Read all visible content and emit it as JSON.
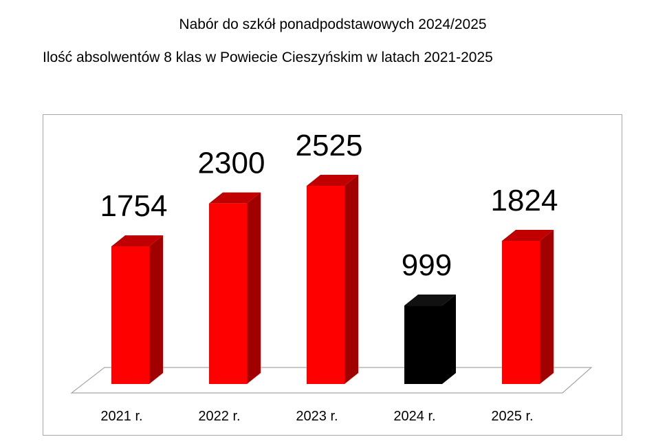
{
  "header": {
    "title": "Nabór do szkół ponadpodstawowych 2024/2025",
    "subtitle": "Ilość absolwentów 8 klas w Powiecie Cieszyńskim w latach 2021-2025"
  },
  "colors": {
    "bar_front": "#ff0000",
    "bar_top": "#c00000",
    "bar_side": "#a00000",
    "highlight_front": "#000000",
    "highlight_top": "#111111",
    "highlight_side": "#000000",
    "floor_stroke": "#a6a6a6",
    "frame_border": "#a6a6a6"
  },
  "chart_data": {
    "type": "bar",
    "style": "3d-column",
    "categories": [
      "2021 r.",
      "2022 r.",
      "2023 r.",
      "2024 r.",
      "2025 r."
    ],
    "values": [
      1754,
      2300,
      2525,
      999,
      1824
    ],
    "data_labels": [
      "1754",
      "2300",
      "2525",
      "999",
      "1824"
    ],
    "highlighted_index": 3,
    "title": "",
    "xlabel": "",
    "ylabel": "",
    "ylim": [
      0,
      2525
    ],
    "grid": false,
    "legend": "none"
  }
}
